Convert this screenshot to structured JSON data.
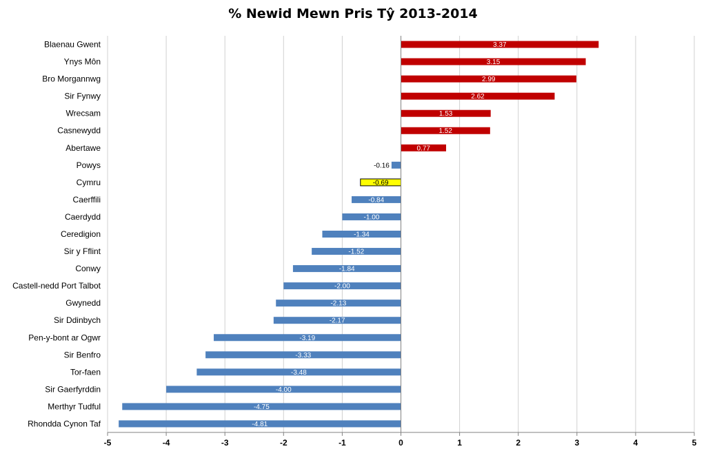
{
  "chart_data": {
    "type": "bar",
    "orientation": "horizontal",
    "title": "% Newid Mewn Pris Tŷ 2013-2014",
    "xlabel": "",
    "ylabel": "",
    "xlim": [
      -5,
      5
    ],
    "xticks": [
      "-5",
      "-4",
      "-3",
      "-2",
      "-1",
      "0",
      "1",
      "2",
      "3",
      "4",
      "5"
    ],
    "grid": "vertical",
    "legend": "none",
    "colors": {
      "positive": "#c00000",
      "negative": "#4f81bd",
      "highlight": "#ffff00",
      "highlight_border": "#000000"
    },
    "categories": [
      "Blaenau Gwent",
      "Ynys Môn",
      "Bro Morgannwg",
      "Sir Fynwy",
      "Wrecsam",
      "Casnewydd",
      "Abertawe",
      "Powys",
      "Cymru",
      "Caerffili",
      "Caerdydd",
      "Ceredigion",
      "Sir y Fflint",
      "Conwy",
      "Castell-nedd Port Talbot",
      "Gwynedd",
      "Sir Ddinbych",
      "Pen-y-bont ar Ogwr",
      "Sir Benfro",
      "Tor-faen",
      "Sir Gaerfyrddin",
      "Merthyr Tudful",
      "Rhondda Cynon Taf"
    ],
    "values": [
      3.37,
      3.15,
      2.99,
      2.62,
      1.53,
      1.52,
      0.77,
      -0.16,
      -0.69,
      -0.84,
      -1.0,
      -1.34,
      -1.52,
      -1.84,
      -2.0,
      -2.13,
      -2.17,
      -3.19,
      -3.33,
      -3.48,
      -4.0,
      -4.75,
      -4.81
    ],
    "value_labels": [
      "3.37",
      "3.15",
      "2.99",
      "2.62",
      "1.53",
      "1.52",
      "0.77",
      "-0.16",
      "-0.69",
      "-0.84",
      "-1.00",
      "-1.34",
      "-1.52",
      "-1.84",
      "-2.00",
      "-2.13",
      "-2.17",
      "-3.19",
      "-3.33",
      "-3.48",
      "-4.00",
      "-4.75",
      "-4.81"
    ],
    "highlight_category": "Cymru"
  }
}
